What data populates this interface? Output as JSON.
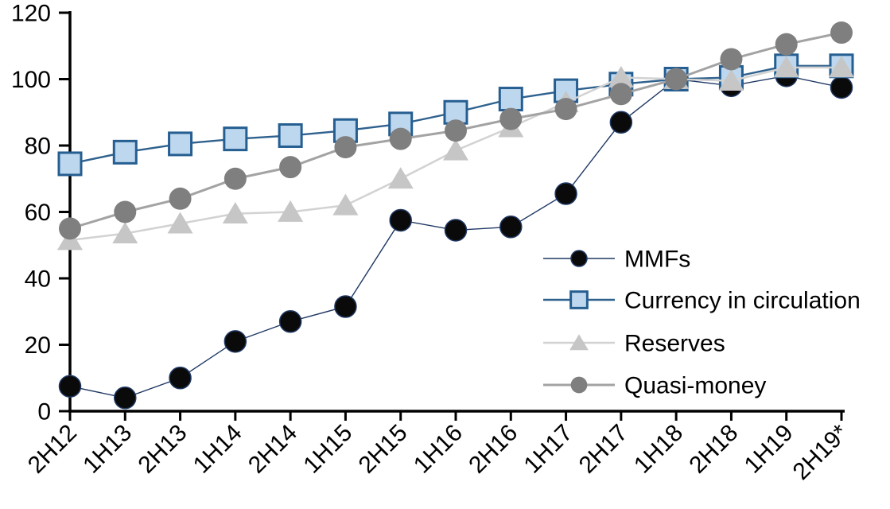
{
  "chart_data": {
    "type": "line",
    "title": "",
    "xlabel": "",
    "ylabel": "",
    "grid": false,
    "legend_position": "inside-right",
    "ylim": [
      0,
      120
    ],
    "yticks": [
      0,
      20,
      40,
      60,
      80,
      100,
      120
    ],
    "categories": [
      "2H12",
      "1H13",
      "2H13",
      "1H14",
      "2H14",
      "1H15",
      "2H15",
      "1H16",
      "2H16",
      "1H17",
      "2H17",
      "1H18",
      "2H18",
      "1H19",
      "2H19*"
    ],
    "series": [
      {
        "name": "MMFs",
        "marker": "circle-filled-black",
        "line_color": "#1F3864",
        "marker_fill": "#0A0A0A",
        "marker_stroke": "#1F3864",
        "values": [
          7.5,
          4,
          10,
          21,
          27,
          31.5,
          57.5,
          54.5,
          55.5,
          65.5,
          87,
          100,
          98,
          101,
          97.5
        ]
      },
      {
        "name": "Currency in circulation",
        "marker": "square-lightblue",
        "line_color": "#2F618E",
        "marker_fill": "#BDD7EE",
        "marker_stroke": "#255E91",
        "values": [
          74.5,
          78,
          80.5,
          82,
          83,
          84.5,
          86.5,
          90,
          94,
          96.5,
          98.5,
          100,
          100.5,
          104,
          104
        ]
      },
      {
        "name": "Reserves",
        "marker": "triangle-lightgray",
        "line_color": "#D2D2D2",
        "marker_fill": "#C6C6C6",
        "marker_stroke": "#C6C6C6",
        "values": [
          51.5,
          53.5,
          56.5,
          59.5,
          60,
          62,
          70,
          78.5,
          85.5,
          93,
          100.5,
          100,
          99.5,
          103.5,
          103.5
        ]
      },
      {
        "name": "Quasi-money",
        "marker": "circle-gray",
        "line_color": "#A3A3A3",
        "marker_fill": "#7F7F7F",
        "marker_stroke": "#7F7F7F",
        "values": [
          55,
          60,
          64,
          70,
          73.5,
          79.5,
          82,
          84.5,
          88,
          91,
          95.5,
          100,
          106,
          110.5,
          114
        ]
      }
    ],
    "colors": {
      "axis": "#000000",
      "background": "#FFFFFF"
    }
  }
}
